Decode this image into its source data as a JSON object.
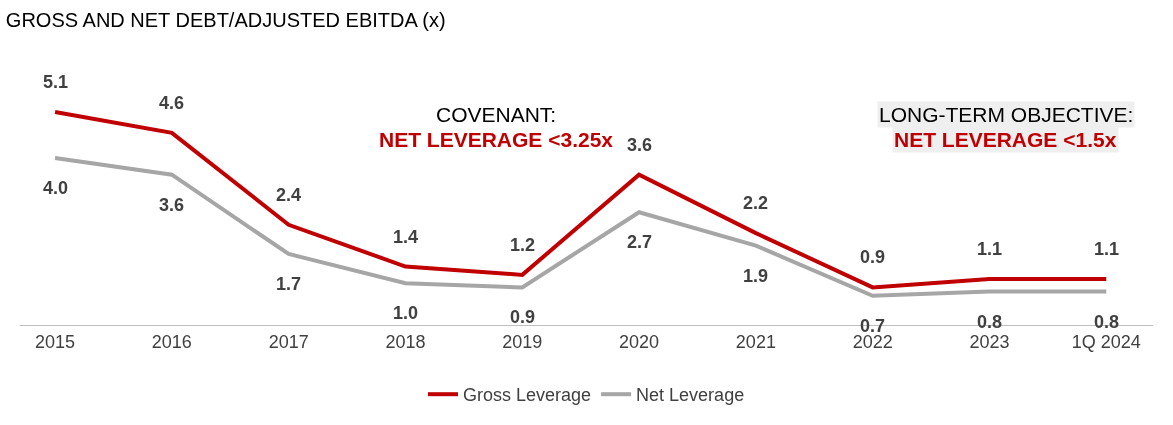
{
  "chart_data": {
    "type": "line",
    "title": "GROSS AND NET DEBT/ADJUSTED EBITDA (x)",
    "categories": [
      "2015",
      "2016",
      "2017",
      "2018",
      "2019",
      "2020",
      "2021",
      "2022",
      "2023",
      "1Q 2024"
    ],
    "series": [
      {
        "name": "Gross Leverage",
        "color": "#c00000",
        "values": [
          5.1,
          4.6,
          2.4,
          1.4,
          1.2,
          3.6,
          2.2,
          0.9,
          1.1,
          1.1
        ],
        "value_labels": [
          "5.1",
          "4.6",
          "2.4",
          "1.4",
          "1.2",
          "3.6",
          "2.2",
          "0.9",
          "1.1",
          "1.1"
        ]
      },
      {
        "name": "Net Leverage",
        "color": "#a6a6a6",
        "values": [
          4.0,
          3.6,
          1.7,
          1.0,
          0.9,
          2.7,
          1.9,
          0.7,
          0.8,
          0.8
        ],
        "value_labels": [
          "4.0",
          "3.6",
          "1.7",
          "1.0",
          "0.9",
          "2.7",
          "1.9",
          "0.7",
          "0.8",
          "0.8"
        ]
      }
    ],
    "annotations": [
      "COVENANT:",
      "NET LEVERAGE <3.25x",
      "LONG-TERM OBJECTIVE:",
      "NET LEVERAGE <1.5x"
    ],
    "legend": "bottom",
    "marker": "none",
    "line_style": "solid"
  }
}
